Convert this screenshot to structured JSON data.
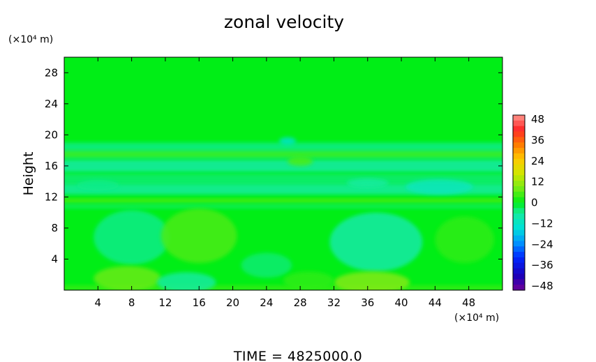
{
  "chart_data": {
    "type": "heatmap",
    "title": "zonal velocity",
    "ylabel": "Height",
    "x_units": "(×10⁴ m)",
    "y_units": "(×10⁴ m)",
    "footer": "TIME  =  4825000.0",
    "xlim": [
      0,
      52
    ],
    "ylim": [
      0,
      30
    ],
    "x_ticks": [
      "4",
      "8",
      "12",
      "16",
      "20",
      "24",
      "28",
      "32",
      "36",
      "40",
      "44",
      "48"
    ],
    "y_ticks": [
      "4",
      "8",
      "12",
      "16",
      "20",
      "24",
      "28"
    ],
    "colorbar": {
      "range": [
        -48,
        48
      ],
      "tick_labels": [
        "48",
        "36",
        "24",
        "12",
        "0",
        "−12",
        "−24",
        "−36",
        "−48"
      ]
    },
    "background_value": 0,
    "features": [
      {
        "kind": "band",
        "y": 18,
        "thickness": 2.0,
        "value": -5
      },
      {
        "kind": "band",
        "y": 17.5,
        "thickness": 0.8,
        "value": 4
      },
      {
        "kind": "band",
        "y": 16,
        "thickness": 1.6,
        "value": -7
      },
      {
        "kind": "band",
        "y": 14.3,
        "thickness": 1.4,
        "value": -4
      },
      {
        "kind": "band",
        "y": 13.0,
        "thickness": 1.4,
        "value": -6
      },
      {
        "kind": "band",
        "y": 11.5,
        "thickness": 0.5,
        "value": 6
      },
      {
        "kind": "band",
        "y": 10.8,
        "thickness": 0.6,
        "value": -3
      },
      {
        "kind": "band",
        "y": 0.3,
        "thickness": 0.6,
        "value": 4
      },
      {
        "kind": "blob",
        "x": 8,
        "y": 6.8,
        "rx": 4.5,
        "ry": 3.5,
        "value": -5
      },
      {
        "kind": "blob",
        "x": 16,
        "y": 7.0,
        "rx": 4.5,
        "ry": 3.5,
        "value": 5
      },
      {
        "kind": "blob",
        "x": 37,
        "y": 6.2,
        "rx": 5.5,
        "ry": 3.8,
        "value": -7
      },
      {
        "kind": "blob",
        "x": 47.5,
        "y": 6.5,
        "rx": 3.5,
        "ry": 3.0,
        "value": 3
      },
      {
        "kind": "blob",
        "x": 24,
        "y": 3.2,
        "rx": 3.0,
        "ry": 1.6,
        "value": -4
      },
      {
        "kind": "blob",
        "x": 7.5,
        "y": 1.5,
        "rx": 4.0,
        "ry": 1.6,
        "value": 7
      },
      {
        "kind": "blob",
        "x": 14.5,
        "y": 1.0,
        "rx": 3.5,
        "ry": 1.3,
        "value": -6
      },
      {
        "kind": "blob",
        "x": 36.5,
        "y": 1.0,
        "rx": 4.5,
        "ry": 1.4,
        "value": 9
      },
      {
        "kind": "blob",
        "x": 29,
        "y": 1.2,
        "rx": 3.0,
        "ry": 1.2,
        "value": 3
      },
      {
        "kind": "blob",
        "x": 26.5,
        "y": 19.2,
        "rx": 1.0,
        "ry": 0.5,
        "value": -12
      },
      {
        "kind": "blob",
        "x": 28,
        "y": 16.6,
        "rx": 1.5,
        "ry": 0.6,
        "value": 5
      },
      {
        "kind": "blob",
        "x": 44.5,
        "y": 13.3,
        "rx": 4.0,
        "ry": 1.0,
        "value": -10
      },
      {
        "kind": "blob",
        "x": 36,
        "y": 13.8,
        "rx": 2.5,
        "ry": 0.6,
        "value": -6
      },
      {
        "kind": "blob",
        "x": 4,
        "y": 13.5,
        "rx": 2.5,
        "ry": 0.7,
        "value": -5
      }
    ]
  }
}
